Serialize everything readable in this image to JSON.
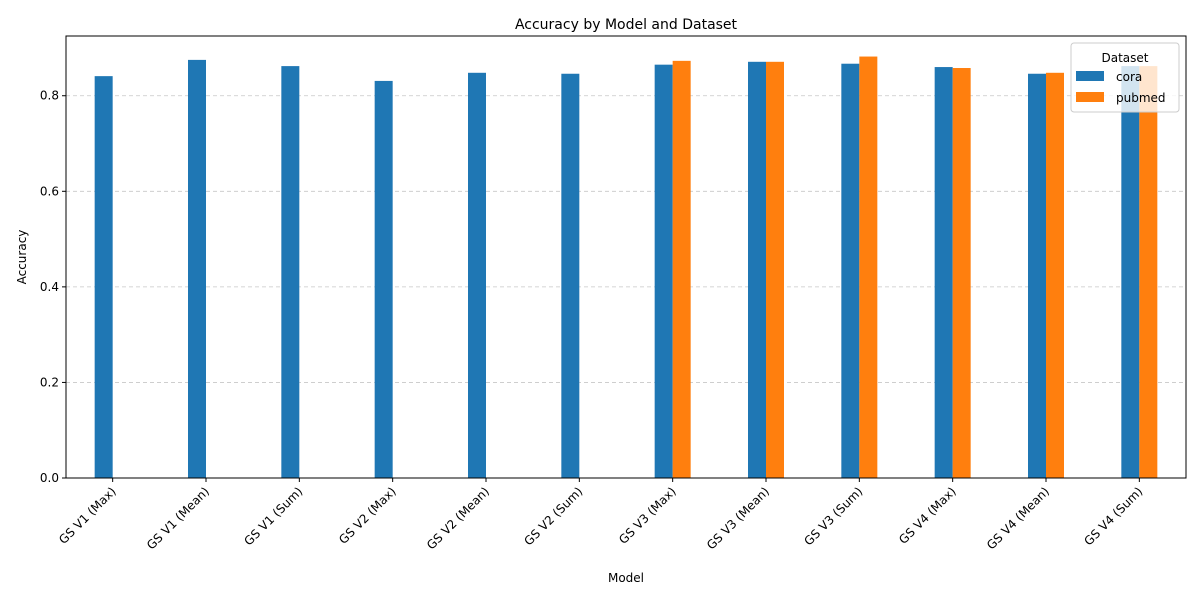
{
  "chart_data": {
    "type": "bar",
    "title": "Accuracy by Model and Dataset",
    "xlabel": "Model",
    "ylabel": "Accuracy",
    "ylim": [
      0,
      0.925
    ],
    "yticks": [
      0.0,
      0.2,
      0.4,
      0.6,
      0.8
    ],
    "ytick_labels": [
      "0.0",
      "0.2",
      "0.4",
      "0.6",
      "0.8"
    ],
    "grid": "horizontal dashed",
    "legend": {
      "title": "Dataset",
      "placement": "top-right"
    },
    "categories": [
      "GS V1 (Max)",
      "GS V1 (Mean)",
      "GS V1 (Sum)",
      "GS V2 (Max)",
      "GS V2 (Mean)",
      "GS V2 (Sum)",
      "GS V3 (Max)",
      "GS V3 (Mean)",
      "GS V3 (Sum)",
      "GS V4 (Max)",
      "GS V4 (Mean)",
      "GS V4 (Sum)"
    ],
    "series": [
      {
        "name": "cora",
        "color": "#1f77b4",
        "values": [
          0.841,
          0.875,
          0.862,
          0.831,
          0.848,
          0.846,
          0.865,
          0.871,
          0.867,
          0.86,
          0.846,
          0.862
        ]
      },
      {
        "name": "pubmed",
        "color": "#ff7f0e",
        "values": [
          null,
          null,
          null,
          null,
          null,
          null,
          0.873,
          0.871,
          0.882,
          0.858,
          0.848,
          0.862
        ]
      }
    ]
  }
}
